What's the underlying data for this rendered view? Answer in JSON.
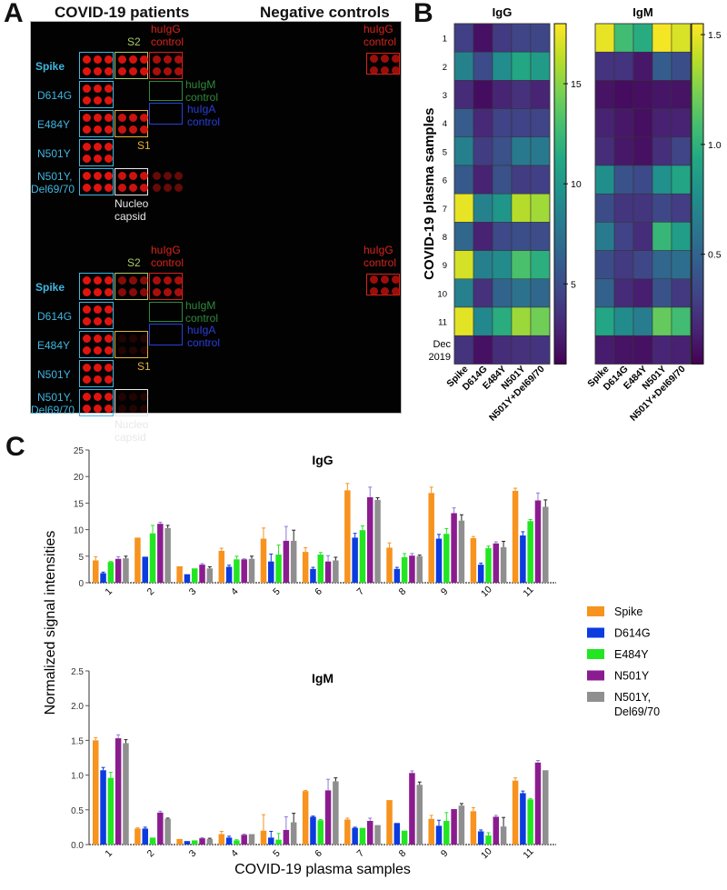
{
  "panels": {
    "a": {
      "letter": "A",
      "left_title": "COVID-19 patients",
      "right_title": "Negative controls"
    },
    "b": {
      "letter": "B"
    },
    "c": {
      "letter": "C"
    }
  },
  "array_labels": {
    "rows": [
      "Spike",
      "D614G",
      "E484Y",
      "N501Y",
      "N501Y,",
      "Del69/70"
    ],
    "s2": "S2",
    "s1": "S1",
    "higg": [
      "huIgG",
      "control"
    ],
    "higm": [
      "huIgM",
      "control"
    ],
    "higa": [
      "huIgA",
      "control"
    ],
    "nucleo": [
      "Nucleo",
      "capsid"
    ],
    "colors": {
      "cyan": "#3fb7e0",
      "red": "#d8241c",
      "green": "#2f8a3c",
      "blue": "#2a3fd8",
      "yellow": "#e2b43a",
      "s2": "#a9c86a",
      "white": "#e8e8e8"
    }
  },
  "chart_data": [
    {
      "type": "heatmap",
      "title": "IgG",
      "ylabel": "COVID-19 plasma samples",
      "rows": [
        "1",
        "2",
        "3",
        "4",
        "5",
        "6",
        "7",
        "8",
        "9",
        "10",
        "11",
        "Dec 2019"
      ],
      "columns": [
        "Spike",
        "D614G",
        "E484Y",
        "N501Y",
        "N501Y+Del69/70"
      ],
      "values": [
        [
          4.2,
          1.8,
          3.9,
          4.5,
          4.6
        ],
        [
          8.5,
          4.9,
          9.3,
          11.1,
          10.3
        ],
        [
          3.1,
          1.6,
          2.7,
          3.4,
          2.7
        ],
        [
          6.0,
          3.0,
          4.4,
          4.4,
          4.5
        ],
        [
          8.3,
          4.0,
          5.3,
          7.9,
          7.9
        ],
        [
          5.8,
          2.6,
          5.3,
          4.0,
          4.2
        ],
        [
          17.4,
          8.5,
          9.9,
          16.1,
          15.6
        ],
        [
          6.6,
          2.6,
          4.8,
          5.1,
          5.0
        ],
        [
          16.9,
          8.3,
          9.2,
          13.1,
          11.7
        ],
        [
          8.4,
          3.4,
          6.5,
          7.4,
          6.7
        ],
        [
          17.3,
          8.9,
          11.6,
          15.5,
          14.3
        ],
        [
          3.5,
          1.8,
          3.2,
          3.4,
          3.6
        ]
      ],
      "colorbar": {
        "ticks": [
          5,
          10,
          15
        ],
        "range": [
          1,
          18
        ]
      }
    },
    {
      "type": "heatmap",
      "title": "IgM",
      "rows": [
        "1",
        "2",
        "3",
        "4",
        "5",
        "6",
        "7",
        "8",
        "9",
        "10",
        "11",
        "Dec 2019"
      ],
      "columns": [
        "Spike",
        "D614G",
        "E484Y",
        "N501Y",
        "N501Y+Del69/70"
      ],
      "values": [
        [
          1.5,
          1.07,
          0.96,
          1.53,
          1.46
        ],
        [
          0.23,
          0.23,
          0.1,
          0.46,
          0.37
        ],
        [
          0.08,
          0.05,
          0.06,
          0.09,
          0.08
        ],
        [
          0.15,
          0.1,
          0.06,
          0.14,
          0.15
        ],
        [
          0.2,
          0.1,
          0.07,
          0.21,
          0.32
        ],
        [
          0.77,
          0.4,
          0.35,
          0.78,
          0.91
        ],
        [
          0.36,
          0.24,
          0.24,
          0.34,
          0.28
        ],
        [
          0.64,
          0.31,
          0.2,
          1.03,
          0.86
        ],
        [
          0.37,
          0.27,
          0.34,
          0.51,
          0.56
        ],
        [
          0.48,
          0.19,
          0.13,
          0.4,
          0.26
        ],
        [
          0.92,
          0.74,
          0.65,
          1.18,
          1.07
        ],
        [
          0.12,
          0.08,
          0.07,
          0.16,
          0.14
        ]
      ],
      "colorbar": {
        "ticks": [
          0.5,
          1.0,
          1.5
        ],
        "range": [
          0.0,
          1.55
        ]
      }
    },
    {
      "type": "bar",
      "title": "IgG",
      "categories": [
        "1",
        "2",
        "3",
        "4",
        "5",
        "6",
        "7",
        "8",
        "9",
        "10",
        "11"
      ],
      "ylim": [
        0,
        25
      ],
      "yticks": [
        0,
        5,
        10,
        15,
        20,
        25
      ],
      "series": [
        {
          "name": "Spike",
          "color": "#f7931e",
          "values": [
            4.2,
            8.5,
            3.1,
            6.0,
            8.3,
            5.8,
            17.4,
            6.6,
            16.9,
            8.4,
            17.3
          ],
          "errors": [
            0.7,
            0.0,
            0.0,
            0.5,
            2.0,
            0.8,
            1.3,
            0.9,
            1.1,
            0.3,
            0.5
          ]
        },
        {
          "name": "D614G",
          "color": "#0b3ce0",
          "values": [
            1.8,
            4.9,
            1.6,
            3.0,
            4.0,
            2.6,
            8.5,
            2.6,
            8.3,
            3.4,
            8.9
          ],
          "errors": [
            0.2,
            0.0,
            0.0,
            0.3,
            1.4,
            0.3,
            0.8,
            0.3,
            0.8,
            0.3,
            0.7
          ]
        },
        {
          "name": "E484Y",
          "color": "#22e622",
          "values": [
            3.9,
            9.3,
            2.7,
            4.4,
            5.3,
            5.3,
            9.9,
            4.8,
            9.2,
            6.5,
            11.6
          ],
          "errors": [
            0.1,
            1.5,
            0.0,
            0.6,
            1.8,
            0.4,
            0.8,
            0.7,
            1.0,
            0.4,
            0.3
          ]
        },
        {
          "name": "N501Y",
          "color": "#8b1c8f",
          "values": [
            4.5,
            11.1,
            3.4,
            4.4,
            7.9,
            4.0,
            16.1,
            5.1,
            13.1,
            7.4,
            15.5
          ],
          "errors": [
            0.4,
            0.3,
            0.2,
            0.1,
            2.7,
            1.1,
            1.9,
            0.4,
            1.0,
            0.3,
            1.4
          ]
        },
        {
          "name": "N501Y, Del69/70",
          "color": "#8f8f8f",
          "values": [
            4.6,
            10.3,
            2.7,
            4.5,
            7.9,
            4.2,
            15.6,
            5.0,
            11.7,
            6.7,
            14.3
          ],
          "errors": [
            0.4,
            0.5,
            0.3,
            0.5,
            2.0,
            0.6,
            0.4,
            0.2,
            1.1,
            1.1,
            1.3
          ]
        }
      ]
    },
    {
      "type": "bar",
      "title": "IgM",
      "xlabel": "COVID-19 plasma samples",
      "ylabel": "Normalized signal intensities",
      "categories": [
        "1",
        "2",
        "3",
        "4",
        "5",
        "6",
        "7",
        "8",
        "9",
        "10",
        "11"
      ],
      "ylim": [
        0,
        2.5
      ],
      "yticks": [
        "0.0",
        "0.5",
        "1.0",
        "1.5",
        "2.0",
        "2.5"
      ],
      "series": [
        {
          "name": "Spike",
          "color": "#f7931e",
          "values": [
            1.5,
            0.23,
            0.08,
            0.15,
            0.2,
            0.77,
            0.36,
            0.64,
            0.37,
            0.48,
            0.92
          ],
          "errors": [
            0.04,
            0.01,
            0.0,
            0.04,
            0.23,
            0.01,
            0.02,
            0.0,
            0.05,
            0.05,
            0.04
          ]
        },
        {
          "name": "D614G",
          "color": "#0b3ce0",
          "values": [
            1.07,
            0.23,
            0.05,
            0.1,
            0.1,
            0.4,
            0.24,
            0.31,
            0.27,
            0.19,
            0.74
          ],
          "errors": [
            0.04,
            0.02,
            0.0,
            0.02,
            0.09,
            0.01,
            0.01,
            0.0,
            0.08,
            0.02,
            0.03
          ]
        },
        {
          "name": "E484Y",
          "color": "#22e622",
          "values": [
            0.96,
            0.1,
            0.06,
            0.06,
            0.07,
            0.35,
            0.24,
            0.2,
            0.34,
            0.13,
            0.65
          ],
          "errors": [
            0.08,
            0.0,
            0.0,
            0.01,
            0.09,
            0.01,
            0.0,
            0.0,
            0.12,
            0.04,
            0.01
          ]
        },
        {
          "name": "N501Y",
          "color": "#8b1c8f",
          "values": [
            1.53,
            0.46,
            0.09,
            0.14,
            0.21,
            0.78,
            0.34,
            1.03,
            0.51,
            0.4,
            1.18
          ],
          "errors": [
            0.05,
            0.02,
            0.01,
            0.01,
            0.19,
            0.16,
            0.04,
            0.03,
            0.0,
            0.02,
            0.03
          ]
        },
        {
          "name": "N501Y, Del69/70",
          "color": "#8f8f8f",
          "values": [
            1.46,
            0.37,
            0.08,
            0.15,
            0.32,
            0.91,
            0.28,
            0.86,
            0.56,
            0.26,
            1.07
          ],
          "errors": [
            0.05,
            0.01,
            0.01,
            0.0,
            0.13,
            0.05,
            0.0,
            0.04,
            0.03,
            0.13,
            0.0
          ]
        }
      ]
    }
  ],
  "legend": [
    {
      "name": "Spike",
      "color": "#f7931e"
    },
    {
      "name": "D614G",
      "color": "#0b3ce0"
    },
    {
      "name": "E484Y",
      "color": "#22e622"
    },
    {
      "name": "N501Y",
      "color": "#8b1c8f"
    },
    {
      "name": "N501Y,",
      "name2": "Del69/70",
      "color": "#8f8f8f"
    }
  ]
}
